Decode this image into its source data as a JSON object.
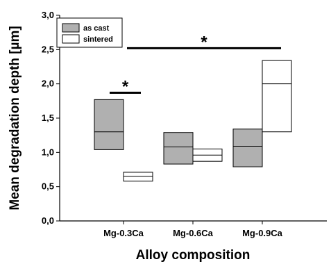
{
  "chart_data": {
    "type": "box",
    "xlabel": "Alloy composition",
    "ylabel": "Mean degradation depth [µm]",
    "ylim": [
      0,
      3
    ],
    "yticks": [
      "0,0",
      "0,5",
      "1,0",
      "1,5",
      "2,0",
      "2,5",
      "3,0"
    ],
    "ytick_values": [
      0,
      0.5,
      1,
      1.5,
      2,
      2.5,
      3
    ],
    "categories": [
      "Mg-0.3Ca",
      "Mg-0.6Ca",
      "Mg-0.9Ca"
    ],
    "series": [
      {
        "name": "as cast",
        "color": "#b0b0b0",
        "boxes": [
          {
            "q1": 1.04,
            "median": 1.3,
            "q3": 1.77
          },
          {
            "q1": 0.83,
            "median": 1.08,
            "q3": 1.29
          },
          {
            "q1": 0.79,
            "median": 1.09,
            "q3": 1.34
          }
        ]
      },
      {
        "name": "sintered",
        "color": "#ffffff",
        "boxes": [
          {
            "q1": 0.58,
            "median": 0.65,
            "q3": 0.71
          },
          {
            "q1": 0.87,
            "median": 0.96,
            "q3": 1.05
          },
          {
            "q1": 1.3,
            "median": 2.0,
            "q3": 2.34
          }
        ]
      }
    ],
    "legend_position": "top-left",
    "grid": false,
    "significance": [
      {
        "label": "*",
        "from_category": 0,
        "to_category": 0,
        "y": 1.87
      },
      {
        "label": "*",
        "from_category": 0,
        "to_category": 2,
        "y": 2.52
      }
    ]
  }
}
